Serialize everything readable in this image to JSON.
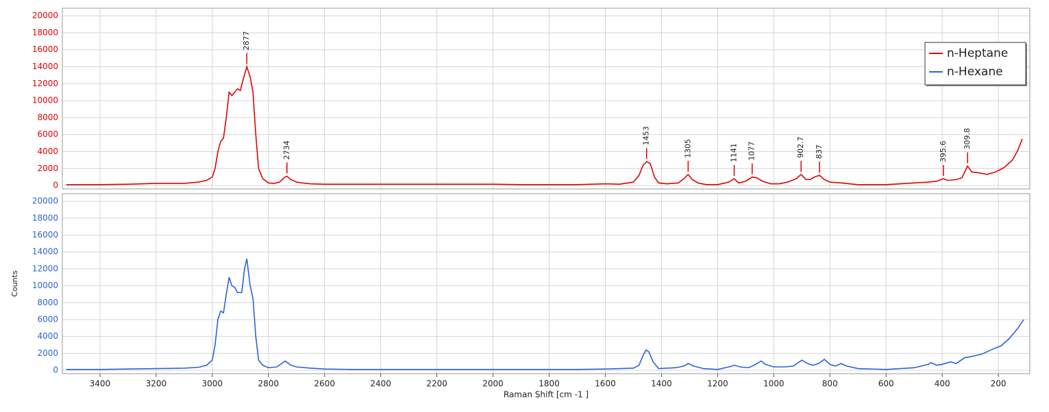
{
  "chart_data": [
    {
      "type": "line",
      "xlim": [
        3534,
        88
      ],
      "ylim": [
        -400,
        20900
      ],
      "yticks": [
        0,
        2000,
        4000,
        6000,
        8000,
        10000,
        12000,
        14000,
        16000,
        18000,
        20000
      ],
      "grid": true,
      "legend": "upper right",
      "x": [
        3520,
        3400,
        3300,
        3200,
        3150,
        3100,
        3050,
        3020,
        3000,
        2990,
        2980,
        2970,
        2960,
        2950,
        2940,
        2930,
        2920,
        2910,
        2900,
        2890,
        2877,
        2865,
        2855,
        2845,
        2835,
        2820,
        2800,
        2780,
        2760,
        2745,
        2734,
        2720,
        2700,
        2680,
        2650,
        2600,
        2500,
        2400,
        2300,
        2200,
        2100,
        2000,
        1900,
        1800,
        1700,
        1600,
        1550,
        1500,
        1480,
        1465,
        1453,
        1440,
        1425,
        1410,
        1380,
        1340,
        1320,
        1305,
        1290,
        1270,
        1240,
        1200,
        1160,
        1141,
        1125,
        1100,
        1077,
        1060,
        1040,
        1010,
        980,
        950,
        920,
        902.7,
        885,
        870,
        855,
        837,
        820,
        800,
        760,
        700,
        650,
        600,
        550,
        500,
        450,
        420,
        395.6,
        380,
        350,
        330,
        309.8,
        295,
        270,
        240,
        210,
        180,
        150,
        130,
        115
      ],
      "series": [
        {
          "name": "n-Heptane",
          "color": "#e00000",
          "values": [
            100,
            100,
            150,
            250,
            250,
            250,
            400,
            600,
            1000,
            2000,
            4000,
            5200,
            5600,
            8000,
            11000,
            10600,
            11000,
            11400,
            11200,
            12500,
            14000,
            12800,
            11000,
            6000,
            2000,
            800,
            300,
            250,
            400,
            900,
            1100,
            700,
            400,
            300,
            200,
            150,
            150,
            150,
            150,
            150,
            150,
            150,
            100,
            100,
            100,
            200,
            150,
            400,
            1200,
            2400,
            2800,
            2600,
            1000,
            300,
            200,
            300,
            800,
            1300,
            700,
            300,
            100,
            100,
            400,
            800,
            300,
            500,
            1000,
            900,
            500,
            200,
            200,
            400,
            800,
            1300,
            700,
            700,
            1000,
            1200,
            700,
            400,
            300,
            100,
            100,
            100,
            200,
            300,
            400,
            500,
            800,
            600,
            700,
            900,
            2300,
            1600,
            1500,
            1300,
            1600,
            2100,
            3000,
            4200,
            5500
          ]
        }
      ],
      "peaks": [
        2877,
        2734,
        1453,
        1305,
        1141,
        1077,
        902.7,
        837,
        395.6,
        309.8
      ]
    },
    {
      "type": "line",
      "xlim": [
        3534,
        88
      ],
      "ylim": [
        -400,
        20900
      ],
      "xticks": [
        3400,
        3200,
        3000,
        2800,
        2600,
        2400,
        2200,
        2000,
        1800,
        1600,
        1400,
        1200,
        1000,
        800,
        600,
        400,
        200
      ],
      "yticks": [
        0,
        2000,
        4000,
        6000,
        8000,
        10000,
        12000,
        14000,
        16000,
        18000,
        20000
      ],
      "grid": true,
      "xlabel": "Raman Shift [cm -1 ]",
      "ylabel": "Counts",
      "x": [
        3520,
        3400,
        3300,
        3200,
        3100,
        3050,
        3020,
        3000,
        2990,
        2980,
        2970,
        2960,
        2950,
        2940,
        2930,
        2920,
        2910,
        2895,
        2885,
        2877,
        2865,
        2855,
        2845,
        2835,
        2820,
        2800,
        2770,
        2740,
        2720,
        2700,
        2650,
        2600,
        2500,
        2300,
        2100,
        1900,
        1700,
        1600,
        1500,
        1480,
        1465,
        1455,
        1445,
        1430,
        1410,
        1350,
        1320,
        1305,
        1285,
        1250,
        1200,
        1160,
        1140,
        1120,
        1090,
        1070,
        1045,
        1030,
        1000,
        960,
        930,
        900,
        880,
        860,
        840,
        820,
        800,
        780,
        760,
        740,
        700,
        600,
        500,
        450,
        440,
        420,
        400,
        370,
        350,
        320,
        300,
        260,
        220,
        190,
        160,
        130,
        110
      ],
      "series": [
        {
          "name": "n-Hexane",
          "color": "#2a62d8",
          "values": [
            100,
            100,
            150,
            200,
            250,
            350,
            600,
            1200,
            3000,
            6000,
            7000,
            6800,
            9000,
            11000,
            10000,
            9800,
            9200,
            9200,
            12000,
            13200,
            10000,
            8500,
            4000,
            1200,
            600,
            300,
            400,
            1100,
            600,
            400,
            250,
            150,
            100,
            100,
            100,
            100,
            100,
            150,
            250,
            600,
            1800,
            2400,
            2200,
            1000,
            200,
            300,
            500,
            800,
            500,
            200,
            100,
            400,
            600,
            400,
            300,
            600,
            1100,
            700,
            400,
            400,
            500,
            1200,
            800,
            600,
            800,
            1300,
            700,
            500,
            800,
            500,
            200,
            100,
            300,
            700,
            900,
            600,
            700,
            1000,
            800,
            1500,
            1600,
            1900,
            2500,
            2900,
            3800,
            5000,
            6000
          ]
        }
      ]
    }
  ]
}
